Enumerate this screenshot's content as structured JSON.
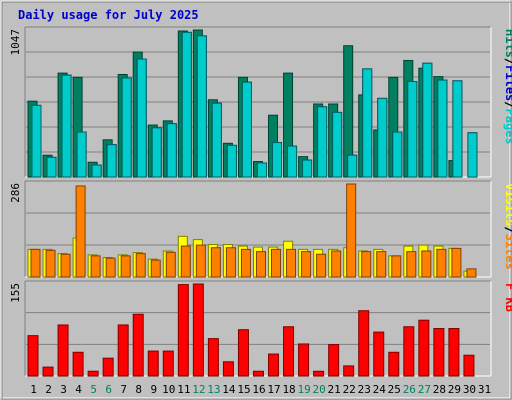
{
  "colors": {
    "background": "#c0c0c0",
    "title": "#0000cc",
    "pages": "#00cccc",
    "files": "#0000cc",
    "hits": "#008060",
    "sites": "#ff8000",
    "visits": "#ffff00",
    "kbytes": "#ff0000",
    "weekend_label": "#008060"
  },
  "chart_data": {
    "type": "bar",
    "title": "Daily usage for July 2025",
    "categories": [
      "1",
      "2",
      "3",
      "4",
      "5",
      "6",
      "7",
      "8",
      "9",
      "10",
      "11",
      "12",
      "13",
      "14",
      "15",
      "16",
      "17",
      "18",
      "19",
      "20",
      "21",
      "22",
      "23",
      "24",
      "25",
      "26",
      "27",
      "28",
      "29",
      "30",
      "31"
    ],
    "weekend_days": [
      "5",
      "6",
      "12",
      "13",
      "19",
      "20",
      "26",
      "27"
    ],
    "panels": [
      {
        "name": "hits",
        "max_label": "1047",
        "ymax": 1047,
        "legend": [
          "Pages",
          "/",
          "Files",
          "/",
          "Hits"
        ],
        "series": [
          {
            "name": "Hits",
            "values": [
              540,
              155,
              740,
              710,
              105,
              265,
              730,
              890,
              370,
              400,
              1040,
              1047,
              550,
              240,
              710,
              110,
              440,
              740,
              145,
              520,
              520,
              935,
              585,
              335,
              710,
              830,
              775,
              715,
              117,
              0,
              0
            ]
          },
          {
            "name": "Files",
            "values": [
              510,
              140,
              725,
              320,
              85,
              230,
              705,
              840,
              350,
              380,
              1030,
              1005,
              525,
              225,
              675,
              100,
              245,
              220,
              120,
              500,
              460,
              155,
              770,
              560,
              320,
              680,
              810,
              690,
              685,
              315,
              0
            ]
          },
          {
            "name": "Pages",
            "values": [
              510,
              140,
              725,
              320,
              85,
              230,
              705,
              840,
              350,
              380,
              1030,
              1005,
              525,
              225,
              675,
              100,
              245,
              220,
              120,
              500,
              460,
              155,
              770,
              560,
              320,
              680,
              810,
              690,
              685,
              315,
              0
            ]
          }
        ]
      },
      {
        "name": "sites",
        "max_label": "286",
        "ymax": 286,
        "legend": [
          "Sites",
          "/",
          "Visits"
        ],
        "series": [
          {
            "name": "Visits",
            "values": [
              85,
              85,
              72,
              120,
              68,
              60,
              68,
              75,
              55,
              80,
              125,
              115,
              100,
              100,
              95,
              92,
              92,
              110,
              85,
              85,
              85,
              90,
              80,
              85,
              65,
              95,
              98,
              95,
              88,
              18,
              0
            ]
          },
          {
            "name": "Sites",
            "values": [
              85,
              82,
              70,
              280,
              65,
              58,
              65,
              72,
              52,
              76,
              95,
              98,
              90,
              90,
              85,
              78,
              85,
              85,
              78,
              70,
              80,
              286,
              78,
              78,
              65,
              78,
              80,
              85,
              88,
              25,
              0
            ]
          }
        ]
      },
      {
        "name": "kbytes",
        "max_label": "155",
        "ymax": 155,
        "legend": [
          "KB",
          " ",
          "F"
        ],
        "series": [
          {
            "name": "KBytes",
            "values": [
              68,
              15,
              86,
              40,
              8,
              30,
              86,
              104,
              42,
              42,
              154,
              155,
              63,
              24,
              78,
              8,
              37,
              83,
              54,
              8,
              53,
              17,
              110,
              74,
              40,
              83,
              94,
              80,
              80,
              35,
              0
            ]
          }
        ]
      }
    ]
  }
}
